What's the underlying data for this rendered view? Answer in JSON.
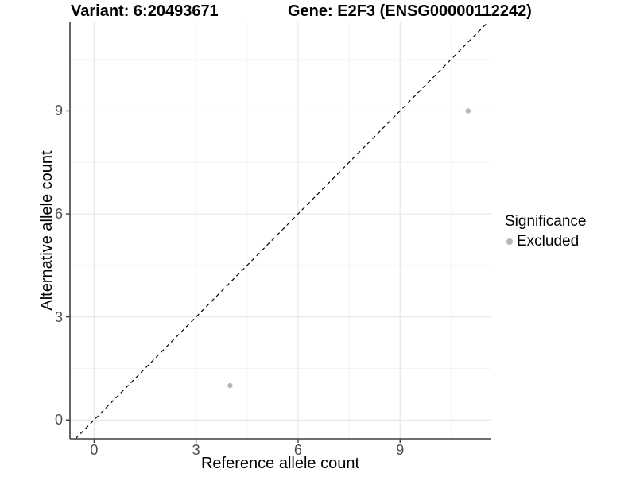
{
  "titles": {
    "variant": "Variant: 6:20493671",
    "gene": "Gene: E2F3 (ENSG00000112242)"
  },
  "legend": {
    "title": "Significance",
    "items": [
      {
        "label": "Excluded",
        "color": "#b5b5b5"
      }
    ]
  },
  "chart_data": {
    "type": "scatter",
    "title": "Variant: 6:20493671   |   Gene: E2F3 (ENSG00000112242)",
    "xlabel": "Reference allele count",
    "ylabel": "Alternative allele count",
    "x_ticks": [
      0,
      3,
      6,
      9
    ],
    "y_ticks": [
      0,
      3,
      6,
      9
    ],
    "xlim": [
      -0.71,
      11.66
    ],
    "ylim": [
      -0.55,
      11.58
    ],
    "grid": {
      "major": true,
      "minor": true
    },
    "legend_position": "right",
    "reference_line": {
      "type": "identity (y = x)",
      "style": "dashed",
      "color": "#000000"
    },
    "series": [
      {
        "name": "Excluded",
        "color": "#b5b5b5",
        "points": [
          {
            "x": 4,
            "y": 1
          },
          {
            "x": 11,
            "y": 9
          }
        ]
      }
    ]
  },
  "colors": {
    "background": "#ffffff",
    "point": "#b5b5b5",
    "grid_major": "#e7e7e7",
    "grid_minor": "#f3f3f3",
    "axis_line": "#3f3f3f",
    "tick_label": "#4d4d4d",
    "title_text": "#000000",
    "reference_line": "#000000"
  }
}
